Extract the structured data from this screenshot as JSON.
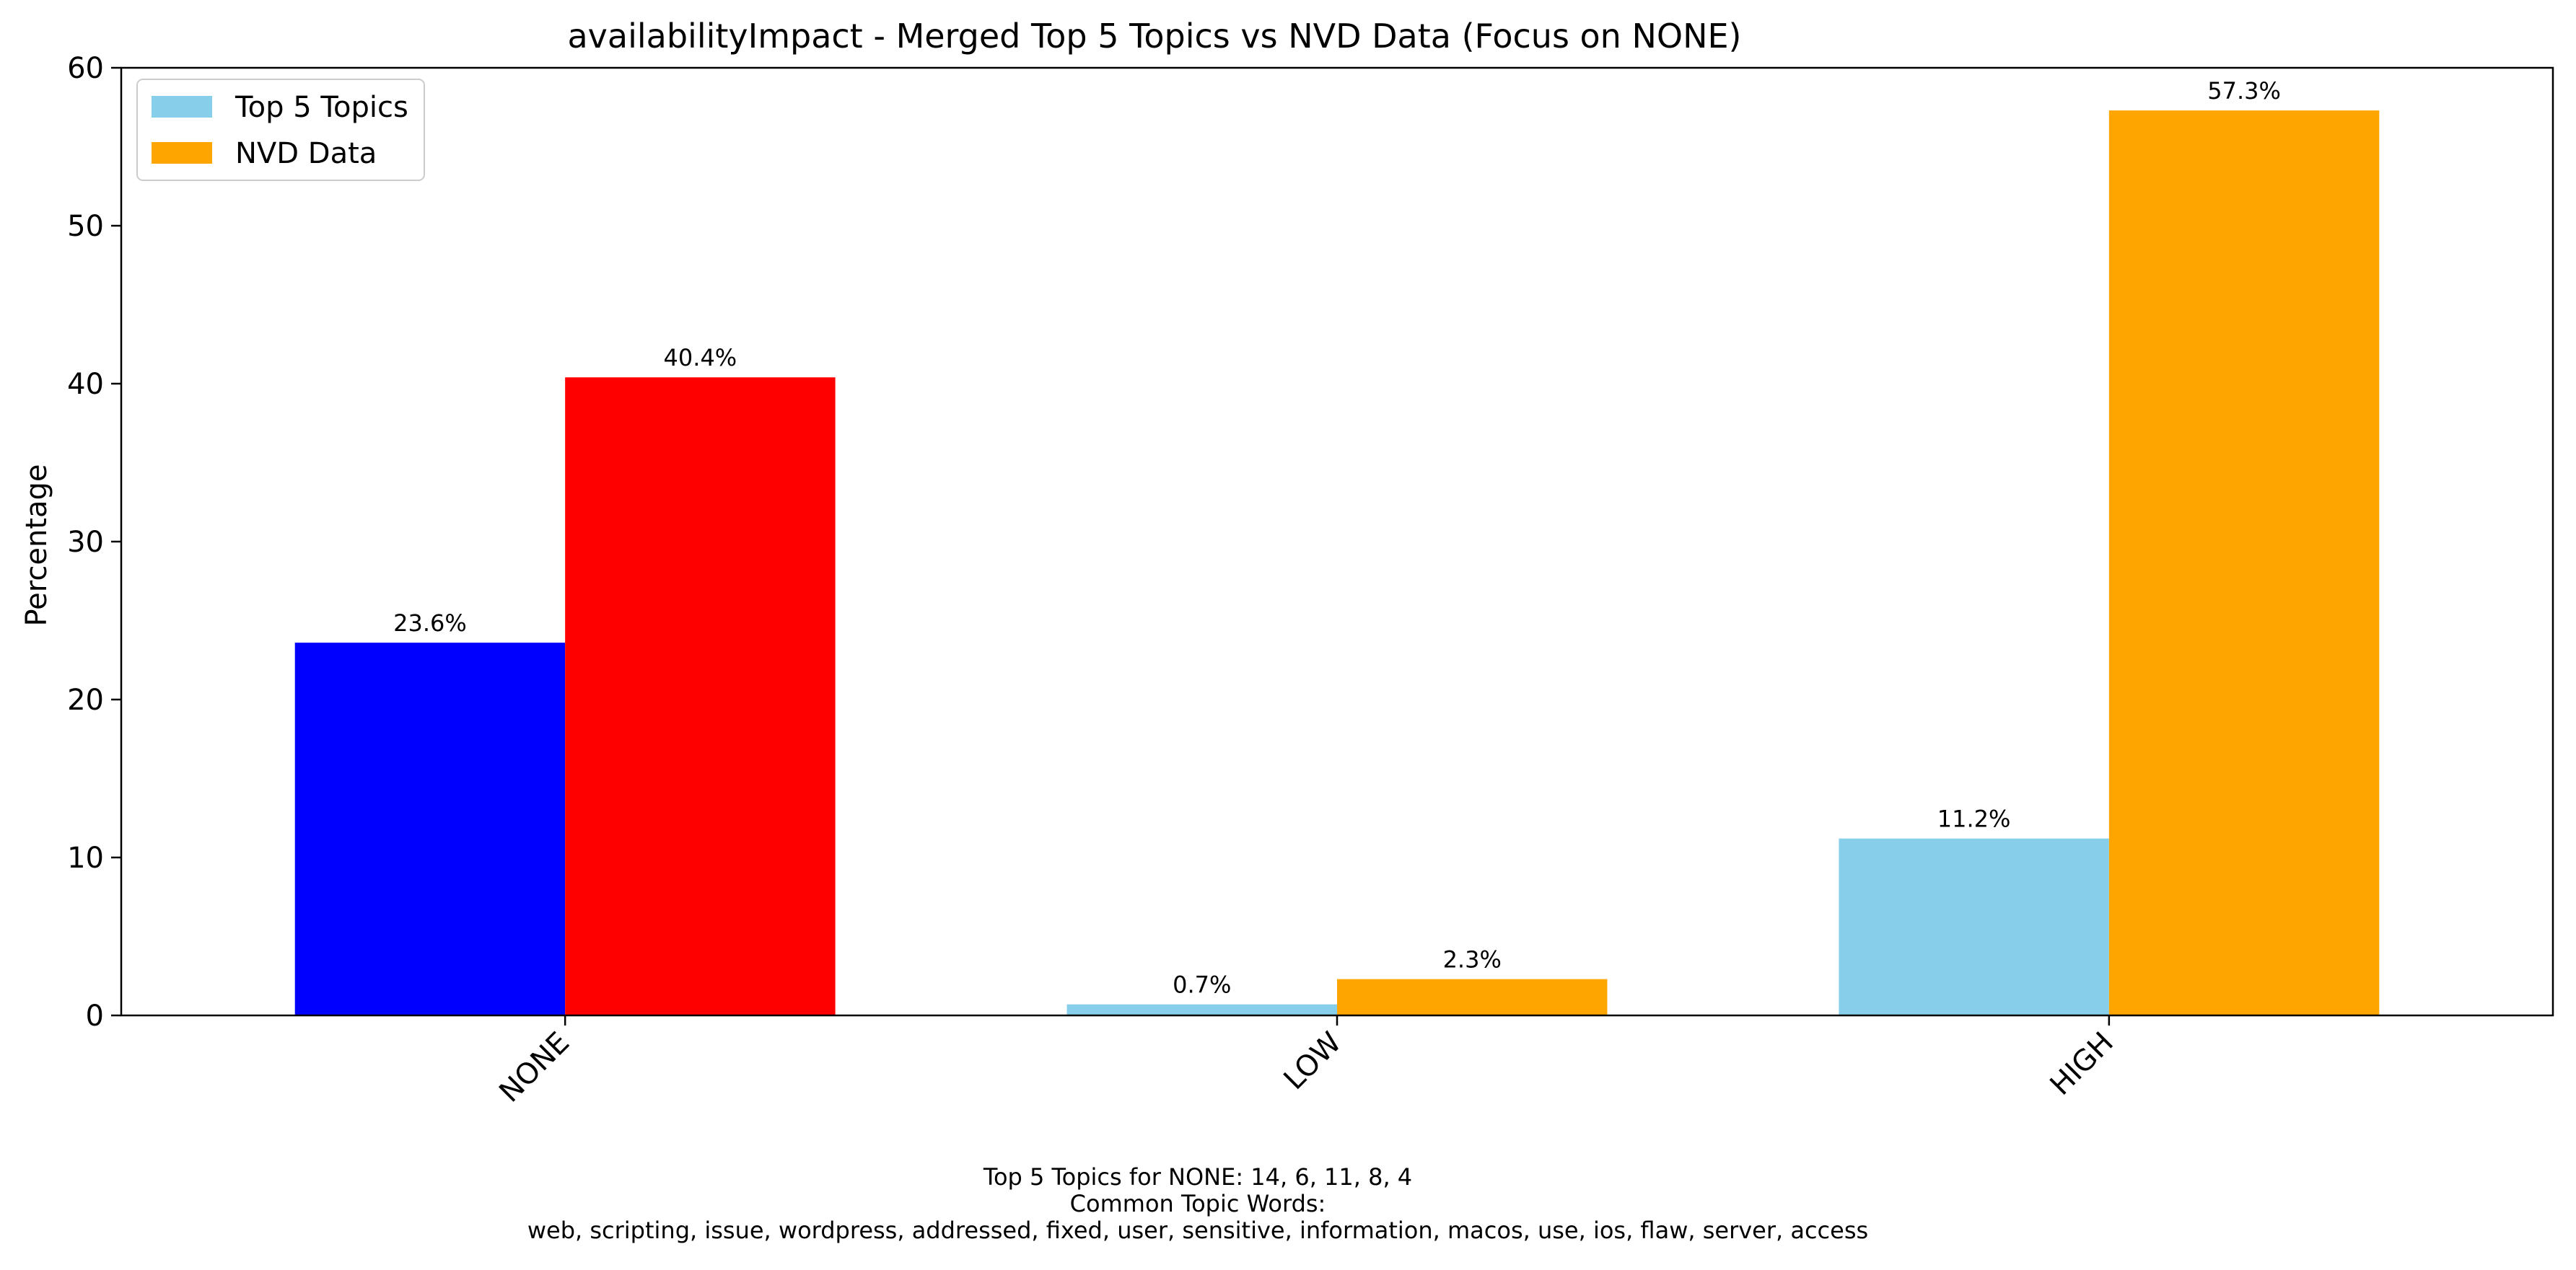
{
  "chart_data": {
    "type": "bar",
    "title": "availabilityImpact - Merged Top 5 Topics vs NVD Data (Focus on NONE)",
    "xlabel": "",
    "ylabel": "Percentage",
    "ylim": [
      0,
      60
    ],
    "yticks": [
      0,
      10,
      20,
      30,
      40,
      50,
      60
    ],
    "categories": [
      "NONE",
      "LOW",
      "HIGH"
    ],
    "legend_position": "top-left",
    "grid": false,
    "series": [
      {
        "name": "Top 5 Topics",
        "color": "#87CEEB",
        "values": [
          23.6,
          0.7,
          11.2
        ],
        "labels": [
          "23.6%",
          "0.7%",
          "11.2%"
        ],
        "point_colors": [
          "#0000FF",
          "#87CEEB",
          "#87CEEB"
        ]
      },
      {
        "name": "NVD Data",
        "color": "#FFA500",
        "values": [
          40.4,
          2.3,
          57.3
        ],
        "labels": [
          "40.4%",
          "2.3%",
          "57.3%"
        ],
        "point_colors": [
          "#FF0000",
          "#FFA500",
          "#FFA500"
        ]
      }
    ],
    "annotation_lines": [
      "Top 5 Topics for NONE: 14, 6, 11, 8, 4",
      "Common Topic Words:",
      "web,  scripting,  issue,  wordpress,  addressed,  fixed,  user,  sensitive,  information,  macos,  use,  ios,  flaw,  server,  access"
    ]
  }
}
